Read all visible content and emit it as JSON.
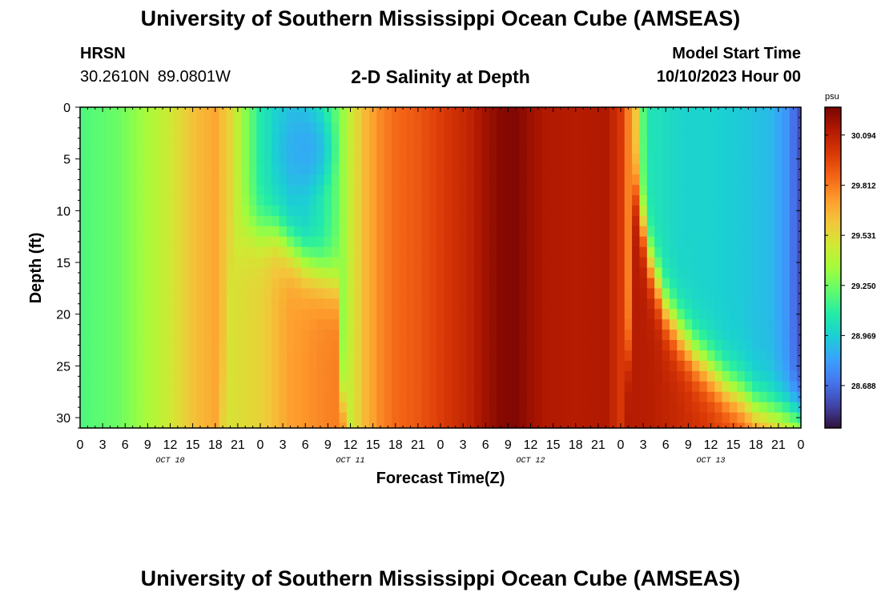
{
  "header": {
    "title": "University of Southern Mississippi Ocean Cube (AMSEAS)",
    "station": "HRSN",
    "lat": "30.2610N",
    "lon": "89.0801W",
    "model_start_label": "Model Start Time",
    "model_start_value": "10/10/2023 Hour 00"
  },
  "footer": {
    "title": "University of Southern Mississippi Ocean Cube (AMSEAS)"
  },
  "chart_data": {
    "type": "heatmap",
    "title": "2-D Salinity at Depth",
    "xlabel": "Forecast Time(Z)",
    "ylabel": "Depth (ft)",
    "x_hours_range": [
      0,
      96
    ],
    "x_tick_step_hours": 3,
    "x_tick_labels": [
      "0",
      "3",
      "6",
      "9",
      "12",
      "15",
      "18",
      "21",
      "0",
      "3",
      "6",
      "9",
      "12",
      "15",
      "18",
      "21",
      "0",
      "3",
      "6",
      "9",
      "12",
      "15",
      "18",
      "21",
      "0",
      "3",
      "6",
      "9",
      "12",
      "15",
      "18",
      "21",
      "0"
    ],
    "day_labels": [
      {
        "label": "OCT 10",
        "hour": 12
      },
      {
        "label": "OCT 11",
        "hour": 36
      },
      {
        "label": "OCT 12",
        "hour": 60
      },
      {
        "label": "OCT 13",
        "hour": 84
      }
    ],
    "ylim": [
      0,
      31
    ],
    "y_ticks": [
      0,
      5,
      10,
      15,
      20,
      25,
      30
    ],
    "y_tick_labels": [
      "0",
      "5",
      "10",
      "15",
      "20",
      "25",
      "30"
    ],
    "colorbar": {
      "units": "psu",
      "range": [
        28.45,
        30.25
      ],
      "ticks": [
        28.688,
        28.969,
        29.25,
        29.531,
        29.812,
        30.094
      ],
      "tick_labels": [
        "28.688",
        "28.969",
        "29.250",
        "29.531",
        "29.812",
        "30.094"
      ]
    },
    "colormap": [
      "#30123b",
      "#4145ab",
      "#4675ed",
      "#39a2fc",
      "#1bcfd4",
      "#24eca6",
      "#61fc6c",
      "#a4fc3b",
      "#d1e834",
      "#f3c63a",
      "#fe9b2d",
      "#f36315",
      "#d93806",
      "#b11901",
      "#7a0402"
    ],
    "grid": {
      "nx": 97,
      "ny": 32,
      "dx_hours": 1,
      "dy_ft": 1,
      "surface_profile_psu": [
        [
          0,
          29.18
        ],
        [
          5,
          29.24
        ],
        [
          8,
          29.33
        ],
        [
          12,
          29.47
        ],
        [
          15,
          29.62
        ],
        [
          18,
          29.7
        ],
        [
          20,
          29.55
        ],
        [
          22,
          29.3
        ],
        [
          24,
          29.08
        ],
        [
          26,
          28.98
        ],
        [
          28,
          28.93
        ],
        [
          30,
          28.96
        ],
        [
          32,
          29.05
        ],
        [
          34,
          29.2
        ],
        [
          36,
          29.45
        ],
        [
          38,
          29.65
        ],
        [
          40,
          29.78
        ],
        [
          42,
          29.85
        ],
        [
          45,
          29.9
        ],
        [
          48,
          29.98
        ],
        [
          52,
          30.08
        ],
        [
          54,
          30.16
        ],
        [
          56,
          30.22
        ],
        [
          58,
          30.23
        ],
        [
          60,
          30.17
        ],
        [
          62,
          30.12
        ],
        [
          66,
          30.11
        ],
        [
          70,
          30.12
        ],
        [
          72,
          30.0
        ],
        [
          74,
          29.6
        ],
        [
          75,
          29.2
        ],
        [
          76,
          29.05
        ],
        [
          80,
          28.99
        ],
        [
          84,
          28.98
        ],
        [
          88,
          28.95
        ],
        [
          92,
          28.9
        ],
        [
          94,
          28.8
        ],
        [
          96,
          28.6
        ]
      ],
      "bottom_profile_psu": [
        [
          0,
          29.22
        ],
        [
          4,
          29.3
        ],
        [
          8,
          29.4
        ],
        [
          12,
          29.6
        ],
        [
          15,
          29.7
        ],
        [
          18,
          29.62
        ],
        [
          20,
          29.5
        ],
        [
          24,
          29.56
        ],
        [
          26,
          29.64
        ],
        [
          28,
          29.72
        ],
        [
          32,
          29.78
        ],
        [
          36,
          29.82
        ],
        [
          38,
          29.88
        ],
        [
          40,
          29.92
        ],
        [
          44,
          29.98
        ],
        [
          48,
          30.05
        ],
        [
          52,
          30.15
        ],
        [
          56,
          30.22
        ],
        [
          58,
          30.23
        ],
        [
          60,
          30.17
        ],
        [
          64,
          30.13
        ],
        [
          68,
          30.12
        ],
        [
          72,
          30.12
        ],
        [
          76,
          30.1
        ],
        [
          80,
          30.05
        ],
        [
          84,
          30.0
        ],
        [
          88,
          29.95
        ],
        [
          92,
          29.8
        ],
        [
          96,
          29.6
        ]
      ],
      "fresh_pocket_psu": {
        "hour": 30,
        "depth_ft": 4,
        "hour_radius": 5,
        "depth_radius": 6,
        "salinity": 28.86
      },
      "thermocline_ft": [
        [
          0,
          40
        ],
        [
          18,
          40
        ],
        [
          20,
          15
        ],
        [
          22,
          12
        ],
        [
          26,
          12
        ],
        [
          30,
          15
        ],
        [
          34,
          17
        ],
        [
          36,
          40
        ],
        [
          72,
          40
        ],
        [
          74,
          8
        ],
        [
          76,
          15
        ],
        [
          78,
          19.5
        ],
        [
          80,
          22
        ],
        [
          82,
          24
        ],
        [
          84,
          25.5
        ],
        [
          86,
          27
        ],
        [
          88,
          28
        ],
        [
          90,
          29.2
        ],
        [
          92,
          29.6
        ],
        [
          94,
          29.8
        ],
        [
          96,
          30
        ]
      ]
    }
  }
}
